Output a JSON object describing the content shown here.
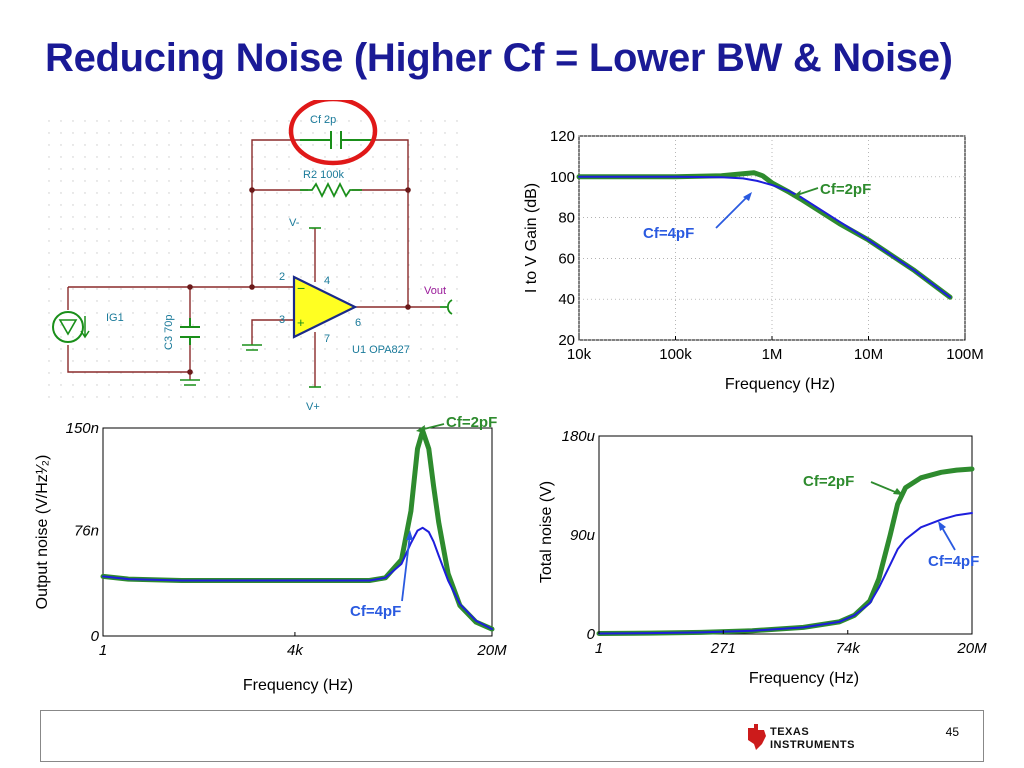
{
  "slide": {
    "title": "Reducing Noise (Higher Cf = Lower BW & Noise)",
    "page_number": "45",
    "logo_text": "Texas Instruments"
  },
  "schematic": {
    "cf_label": "Cf 2p",
    "r2_label": "R2 100k",
    "c3_label": "C3 70p",
    "ig_label": "IG1",
    "u1_label": "U1 OPA827",
    "vout_label": "Vout",
    "vminus_label": "V-",
    "vplus_label": "V+",
    "pin2": "2",
    "pin3": "3",
    "pin4": "4",
    "pin6": "6",
    "pin7": "7",
    "highlight_color": "#e01818"
  },
  "colors": {
    "cf2": "#2e8b2e",
    "cf4": "#1e1edc",
    "annot4": "#2a5ae0",
    "axis": "#000000"
  },
  "chart_data": [
    {
      "type": "line",
      "ylabel": "I to V Gain (dB)",
      "xlabel": "Frequency (Hz)",
      "x_scale": "log",
      "xlim": [
        10000,
        100000000
      ],
      "ylim": [
        20,
        120
      ],
      "yticks": [
        "120",
        "100",
        "80",
        "60",
        "40",
        "20"
      ],
      "xticks": [
        "10k",
        "100k",
        "1M",
        "10M",
        "100M"
      ],
      "grid": "dotted",
      "series": [
        {
          "name": "Cf=2pF",
          "x": [
            10000,
            100000,
            300000,
            500000,
            650000,
            800000,
            1000000,
            1500000,
            2000000,
            5000000,
            10000000,
            30000000,
            70000000
          ],
          "y": [
            100,
            100,
            100.5,
            101.5,
            102,
            100.5,
            97,
            92.5,
            89,
            77,
            69,
            54,
            41
          ]
        },
        {
          "name": "Cf=4pF",
          "x": [
            10000,
            100000,
            300000,
            500000,
            700000,
            1000000,
            1500000,
            2000000,
            5000000,
            10000000,
            30000000,
            70000000
          ],
          "y": [
            100,
            100,
            99.8,
            99.2,
            98,
            96,
            93,
            90,
            78,
            69,
            54,
            41
          ]
        }
      ],
      "annotations": [
        "Cf=2pF",
        "Cf=4pF"
      ]
    },
    {
      "type": "line",
      "ylabel": "Output noise (V/Hz¹⁄₂)",
      "xlabel": "Frequency (Hz)",
      "x_scale": "log",
      "xlim": [
        1,
        20000000
      ],
      "ylim": [
        0,
        150
      ],
      "yticks": [
        "150n",
        "76n",
        "0"
      ],
      "xticks": [
        "1",
        "4k",
        "20M"
      ],
      "series": [
        {
          "name": "Cf=2pF",
          "x": [
            1,
            3,
            30,
            1000,
            100000,
            200000,
            400000,
            600000,
            800000,
            1000000,
            1300000,
            1600000,
            2000000,
            3000000,
            5000000,
            10000000,
            20000000
          ],
          "y": [
            43,
            41,
            40,
            40,
            40,
            42,
            55,
            90,
            135,
            148,
            135,
            108,
            82,
            45,
            22,
            10,
            5
          ]
        },
        {
          "name": "Cf=4pF",
          "x": [
            1,
            3,
            30,
            1000,
            100000,
            200000,
            400000,
            600000,
            800000,
            1000000,
            1300000,
            1600000,
            2000000,
            3000000,
            5000000,
            10000000,
            20000000
          ],
          "y": [
            43,
            41,
            40,
            40,
            40,
            42,
            52,
            67,
            76,
            78,
            75,
            68,
            58,
            40,
            23,
            11,
            5
          ]
        }
      ],
      "annotations": [
        "Cf=2pF",
        "Cf=4pF"
      ]
    },
    {
      "type": "line",
      "ylabel": "Total noise (V)",
      "xlabel": "Frequency (Hz)",
      "x_scale": "log",
      "xlim": [
        1,
        20000000
      ],
      "ylim": [
        0,
        180
      ],
      "yticks": [
        "180u",
        "90u",
        "0"
      ],
      "xticks": [
        "1",
        "271",
        "74k",
        "20M"
      ],
      "series": [
        {
          "name": "Cf=2pF",
          "x": [
            1,
            10,
            100,
            1000,
            10000,
            50000,
            100000,
            200000,
            300000,
            500000,
            700000,
            1000000,
            2000000,
            5000000,
            10000000,
            20000000
          ],
          "y": [
            0.5,
            0.8,
            1.5,
            3,
            6,
            11,
            17,
            30,
            50,
            90,
            118,
            133,
            142,
            147,
            149,
            150
          ]
        },
        {
          "name": "Cf=4pF",
          "x": [
            1,
            10,
            100,
            1000,
            10000,
            50000,
            100000,
            200000,
            300000,
            500000,
            700000,
            1000000,
            2000000,
            5000000,
            10000000,
            20000000
          ],
          "y": [
            0.5,
            0.8,
            1.5,
            3,
            6,
            11,
            17,
            28,
            42,
            63,
            77,
            86,
            97,
            104,
            108,
            110
          ]
        }
      ],
      "annotations": [
        "Cf=2pF",
        "Cf=4pF"
      ]
    }
  ]
}
